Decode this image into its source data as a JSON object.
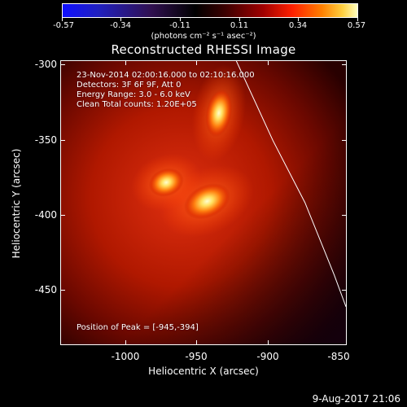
{
  "colorbar": {
    "tick_labels": [
      "-0.57",
      "-0.34",
      "-0.11",
      "0.11",
      "0.34",
      "0.57"
    ],
    "units_label": "(photons cm⁻² s⁻¹ asec⁻²)"
  },
  "plot": {
    "title": "Reconstructed RHESSI Image",
    "annotations": {
      "time_range": "23-Nov-2014 02:00:16.000 to 02:10:16.000",
      "detectors": "Detectors: 3F 6F 9F, Att 0",
      "energy": "Energy Range: 3.0 - 6.0 keV",
      "method_counts": "Clean     Total counts: 1.20E+05",
      "peak": "Position of Peak = [-945,-394]"
    },
    "x_axis": {
      "label": "Heliocentric X (arcsec)",
      "ticks": [
        "-1000",
        "-950",
        "-900",
        "-850"
      ]
    },
    "y_axis": {
      "label": "Heliocentric Y (arcsec)",
      "ticks": [
        "-300",
        "-350",
        "-400",
        "-450"
      ]
    }
  },
  "footer": {
    "date_stamp": "9-Aug-2017 21:06"
  },
  "chart_data": {
    "type": "heatmap",
    "title": "Reconstructed RHESSI Image",
    "xlabel": "Heliocentric X (arcsec)",
    "ylabel": "Heliocentric Y (arcsec)",
    "xlim": [
      -1045,
      -850
    ],
    "ylim": [
      -493,
      -297
    ],
    "color_range": [
      -0.57,
      0.57
    ],
    "colorscale": "blue-black-red-yellow-white",
    "sources": [
      {
        "name": "peak",
        "x": -945,
        "y": -394
      },
      {
        "name": "northern",
        "x": -937,
        "y": -333
      },
      {
        "name": "western-lobe",
        "x": -973,
        "y": -381
      }
    ],
    "limb_curve": [
      [
        -925,
        -297
      ],
      [
        -900,
        -352
      ],
      [
        -878,
        -395
      ],
      [
        -858,
        -445
      ],
      [
        -850,
        -467
      ]
    ]
  },
  "colors": {
    "background": "#000000",
    "foreground": "#ffffff"
  }
}
